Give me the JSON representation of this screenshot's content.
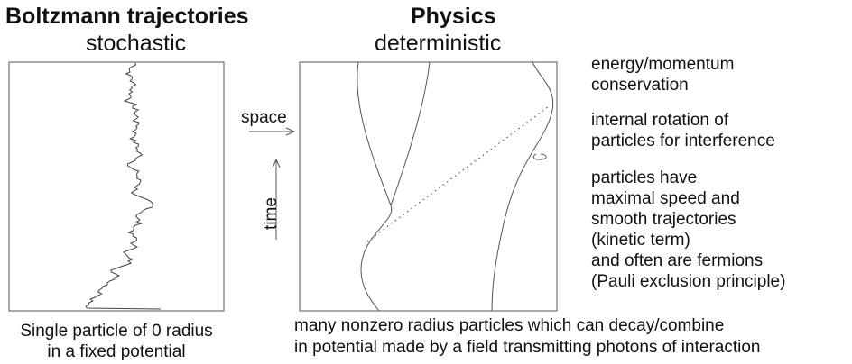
{
  "left_panel": {
    "title": "Boltzmann trajectories",
    "subtitle": "stochastic",
    "caption_lines": [
      "Single particle of 0 radius",
      "in a fixed potential"
    ]
  },
  "right_panel": {
    "title": "Physics",
    "subtitle": "deterministic",
    "caption_lines": [
      "many nonzero radius particles which can decay/combine",
      "in potential made by a field transmitting photons of interaction"
    ]
  },
  "axes": {
    "space_label": "space",
    "time_label": "time"
  },
  "notes": {
    "n1": [
      "energy/momentum",
      "conservation"
    ],
    "n2": [
      "internal rotation of",
      "particles for interference"
    ],
    "n3": [
      "particles have",
      "maximal speed and",
      "smooth trajectories",
      "(kinetic term)",
      "and often are fermions",
      "(Pauli exclusion principle)"
    ]
  },
  "colors": {
    "line": "#555555",
    "text": "#111111"
  }
}
